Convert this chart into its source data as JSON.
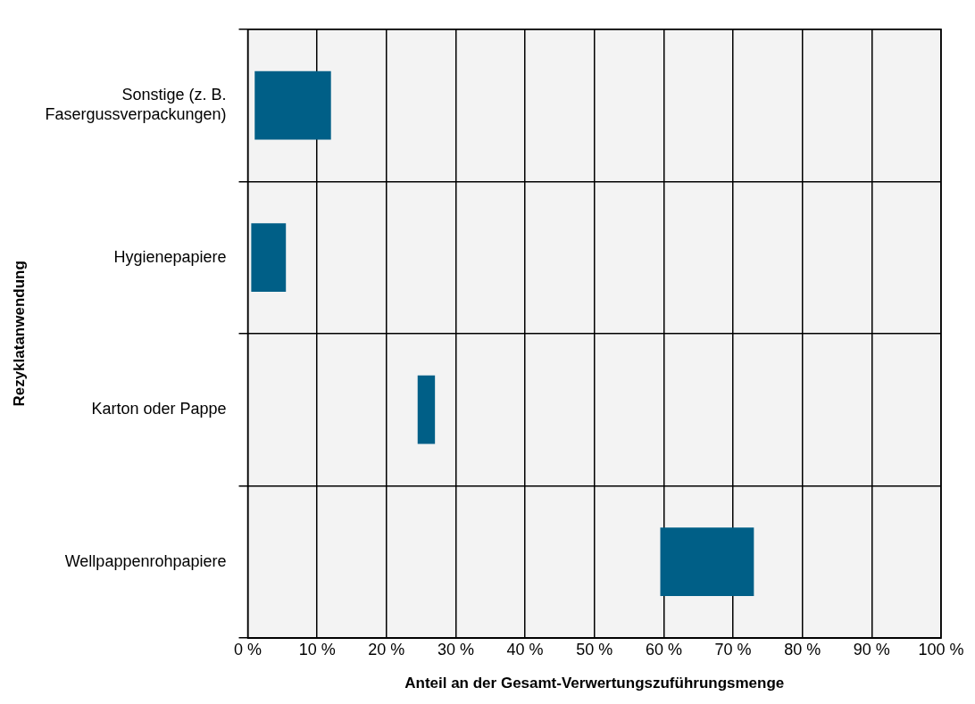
{
  "chart_data": {
    "type": "bar",
    "orientation": "horizontal",
    "xlabel": "Anteil an der Gesamt-Verwertungszuführungsmenge",
    "ylabel": "Rezyklatanwendung",
    "categories": [
      "Sonstige (z. B. Fasergussverpackungen)",
      "Hygienepapiere",
      "Karton oder Pappe",
      "Wellpappenrohpapiere"
    ],
    "values": [
      11,
      5,
      2.5,
      13.5
    ],
    "base": [
      1,
      0.5,
      24.5,
      59.5
    ],
    "color": "#005f87",
    "xlim": [
      0,
      100
    ],
    "xticks": [
      {
        "value": 0,
        "label": "0 %"
      },
      {
        "value": 10,
        "label": "10 %"
      },
      {
        "value": 20,
        "label": "20 %"
      },
      {
        "value": 30,
        "label": "30 %"
      },
      {
        "value": 40,
        "label": "40 %"
      },
      {
        "value": 50,
        "label": "50 %"
      },
      {
        "value": 60,
        "label": "60 %"
      },
      {
        "value": 70,
        "label": "70 %"
      },
      {
        "value": 80,
        "label": "80 %"
      },
      {
        "value": 90,
        "label": "90 %"
      },
      {
        "value": 100,
        "label": "100 %"
      }
    ],
    "grid": true,
    "legend": false
  }
}
